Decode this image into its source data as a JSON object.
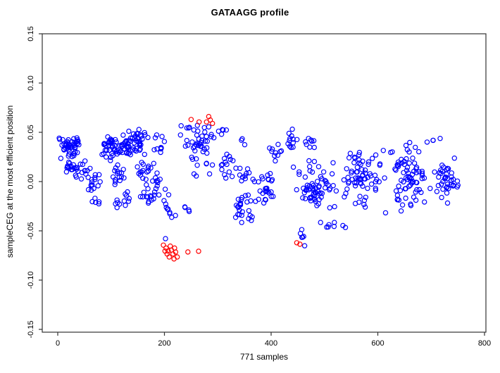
{
  "chart_data": {
    "type": "scatter",
    "title": "GATAAGG profile",
    "xlabel": "771 samples",
    "ylabel": "sampleCEG at the most efficient position",
    "xlim": [
      0,
      800
    ],
    "ylim": [
      -0.15,
      0.15
    ],
    "xticks": [
      0,
      200,
      400,
      600,
      800
    ],
    "xtick_labels": [
      "0",
      "200",
      "400",
      "600",
      "800"
    ],
    "yticks": [
      -0.15,
      -0.1,
      -0.05,
      0.0,
      0.05,
      0.1,
      0.15
    ],
    "ytick_labels": [
      "-0.15",
      "-0.10",
      "-0.05",
      "0.00",
      "0.05",
      "0.10",
      "0.15"
    ],
    "grid": false,
    "legend": null,
    "sample_count": 771,
    "colors": {
      "primary": "#0000ff",
      "highlight": "#ff0000",
      "axis": "#333333",
      "text": "#000000",
      "background": "#ffffff"
    },
    "point_style": {
      "shape": "open-circle",
      "radius": 3.1,
      "stroke_width": 1.2
    },
    "seed": 7,
    "series": [
      {
        "name": "samples",
        "color": "#0000ff",
        "points": [
          [
            202,
            -0.0579
          ]
        ],
        "clusters": [
          {
            "x": [
              2,
              46
            ],
            "y": [
              0.021,
              0.047
            ],
            "n": 48
          },
          {
            "x": [
              8,
              40
            ],
            "y": [
              0.007,
              0.023
            ],
            "n": 14
          },
          {
            "x": [
              25,
              62
            ],
            "y": [
              -0.002,
              0.022
            ],
            "n": 16
          },
          {
            "x": [
              48,
              85
            ],
            "y": [
              -0.012,
              0.012
            ],
            "n": 14
          },
          {
            "x": [
              55,
              80
            ],
            "y": [
              -0.028,
              -0.012
            ],
            "n": 5
          },
          {
            "x": [
              78,
              125
            ],
            "y": [
              0.018,
              0.05
            ],
            "n": 44
          },
          {
            "x": [
              95,
              135
            ],
            "y": [
              -0.005,
              0.018
            ],
            "n": 16
          },
          {
            "x": [
              100,
              140
            ],
            "y": [
              -0.031,
              -0.006
            ],
            "n": 12
          },
          {
            "x": [
              118,
              175
            ],
            "y": [
              0.025,
              0.053
            ],
            "n": 50
          },
          {
            "x": [
              140,
              185
            ],
            "y": [
              0.0,
              0.027
            ],
            "n": 16
          },
          {
            "x": [
              150,
              195
            ],
            "y": [
              -0.028,
              -0.002
            ],
            "n": 14
          },
          {
            "x": [
              168,
              210
            ],
            "y": [
              -0.015,
              0.012
            ],
            "n": 12
          },
          {
            "x": [
              175,
              215
            ],
            "y": [
              0.028,
              0.05
            ],
            "n": 10
          },
          {
            "x": [
              193,
              225
            ],
            "y": [
              -0.039,
              -0.011
            ],
            "n": 10
          },
          {
            "x": [
              228,
              300
            ],
            "y": [
              0.028,
              0.062
            ],
            "n": 40
          },
          {
            "x": [
              240,
              295
            ],
            "y": [
              0.003,
              0.027
            ],
            "n": 10
          },
          {
            "x": [
              232,
              252
            ],
            "y": [
              -0.034,
              -0.022
            ],
            "n": 4
          },
          {
            "x": [
              296,
              320
            ],
            "y": [
              0.046,
              0.059
            ],
            "n": 5
          },
          {
            "x": [
              298,
              335
            ],
            "y": [
              -0.008,
              0.038
            ],
            "n": 14
          },
          {
            "x": [
              330,
              372
            ],
            "y": [
              -0.006,
              0.018
            ],
            "n": 12
          },
          {
            "x": [
              326,
              372
            ],
            "y": [
              -0.046,
              -0.008
            ],
            "n": 26
          },
          {
            "x": [
              340,
              352
            ],
            "y": [
              0.036,
              0.045
            ],
            "n": 3
          },
          {
            "x": [
              370,
              410
            ],
            "y": [
              -0.028,
              0.012
            ],
            "n": 26
          },
          {
            "x": [
              395,
              430
            ],
            "y": [
              0.014,
              0.04
            ],
            "n": 10
          },
          {
            "x": [
              428,
              452
            ],
            "y": [
              0.028,
              0.056
            ],
            "n": 12
          },
          {
            "x": [
              452,
              472
            ],
            "y": [
              -0.067,
              -0.048
            ],
            "n": 6
          },
          {
            "x": [
              455,
              485
            ],
            "y": [
              0.028,
              0.047
            ],
            "n": 8
          },
          {
            "x": [
              440,
              530
            ],
            "y": [
              -0.034,
              0.028
            ],
            "n": 65
          },
          {
            "x": [
              490,
              560
            ],
            "y": [
              -0.052,
              -0.036
            ],
            "n": 8
          },
          {
            "x": [
              525,
              620
            ],
            "y": [
              -0.033,
              0.038
            ],
            "n": 70
          },
          {
            "x": [
              615,
              700
            ],
            "y": [
              -0.032,
              0.042
            ],
            "n": 75
          },
          {
            "x": [
              695,
              762
            ],
            "y": [
              -0.025,
              0.025
            ],
            "n": 40
          },
          {
            "x": [
              690,
              720
            ],
            "y": [
              0.036,
              0.046
            ],
            "n": 4
          }
        ]
      },
      {
        "name": "highlighted",
        "color": "#ff0000",
        "clusters": [],
        "points": [
          [
            250,
            0.063
          ],
          [
            265,
            0.0605
          ],
          [
            283,
            0.066
          ],
          [
            286,
            0.0625
          ],
          [
            279,
            0.0605
          ],
          [
            290,
            0.059
          ],
          [
            198,
            -0.0645
          ],
          [
            203,
            -0.0675
          ],
          [
            207,
            -0.0705
          ],
          [
            211,
            -0.0655
          ],
          [
            213,
            -0.0695
          ],
          [
            216,
            -0.0735
          ],
          [
            219,
            -0.0675
          ],
          [
            221,
            -0.0715
          ],
          [
            224,
            -0.0765
          ],
          [
            209,
            -0.0765
          ],
          [
            205,
            -0.0735
          ],
          [
            218,
            -0.0785
          ],
          [
            201,
            -0.0705
          ],
          [
            244,
            -0.0714
          ],
          [
            264,
            -0.0707
          ],
          [
            448,
            -0.0621
          ],
          [
            454,
            -0.0636
          ]
        ]
      }
    ]
  }
}
